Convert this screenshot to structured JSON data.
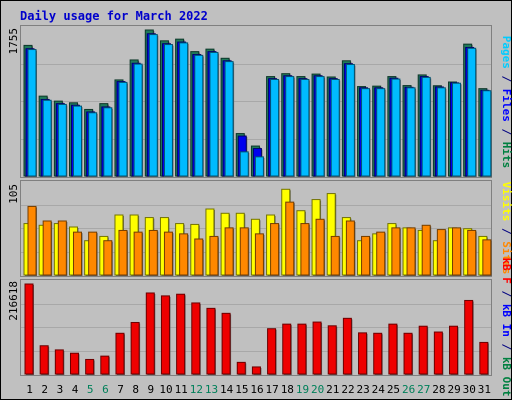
{
  "chart_data": {
    "type": "bar",
    "title": "Daily usage for March 2022",
    "categories": [
      "1",
      "2",
      "3",
      "4",
      "5",
      "6",
      "7",
      "8",
      "9",
      "10",
      "11",
      "12",
      "13",
      "14",
      "15",
      "16",
      "17",
      "18",
      "19",
      "20",
      "21",
      "22",
      "23",
      "24",
      "25",
      "26",
      "27",
      "28",
      "29",
      "30",
      "31"
    ],
    "weekend_days": [
      "5",
      "6",
      "12",
      "13",
      "19",
      "20",
      "26",
      "27"
    ],
    "panels": [
      {
        "id": "top",
        "ymax": 1755,
        "ymax_label": "1755",
        "right_labels": [
          {
            "text": "Pages",
            "color": "#00ccff"
          },
          {
            "text": " / ",
            "color": "#000080"
          },
          {
            "text": "Files",
            "color": "#0000ff"
          },
          {
            "text": " / ",
            "color": "#000080"
          },
          {
            "text": "Hits",
            "color": "#008040"
          }
        ],
        "series": [
          {
            "name": "Hits",
            "color": "#1f7a5a",
            "values": [
              1570,
              960,
              900,
              880,
              800,
              870,
              1155,
              1395,
              1755,
              1625,
              1645,
              1495,
              1525,
              1415,
              510,
              360,
              1195,
              1230,
              1195,
              1225,
              1190,
              1385,
              1075,
              1080,
              1195,
              1087,
              1215,
              1085,
              1130,
              1585,
              1050
            ]
          },
          {
            "name": "Files",
            "color": "#0000ee",
            "values": [
              1530,
              920,
              870,
              850,
              770,
              830,
              1135,
              1355,
              1710,
              1590,
              1610,
              1460,
              1495,
              1385,
              480,
              330,
              1170,
              1205,
              1170,
              1205,
              1170,
              1350,
              1060,
              1060,
              1175,
              1066,
              1195,
              1070,
              1120,
              1545,
              1030
            ]
          },
          {
            "name": "Pages",
            "color": "#00bbff",
            "values": [
              1520,
              910,
              860,
              840,
              760,
              820,
              1125,
              1345,
              1700,
              1580,
              1600,
              1450,
              1485,
              1375,
              290,
              230,
              1160,
              1195,
              1160,
              1195,
              1160,
              1340,
              1050,
              1050,
              1165,
              1060,
              1185,
              1060,
              1115,
              1535,
              1025
            ]
          }
        ]
      },
      {
        "id": "middle",
        "ymax": 105,
        "ymax_label": "105",
        "right_labels": [
          {
            "text": "Visits",
            "color": "#ffff00"
          },
          {
            "text": " / ",
            "color": "#000080"
          },
          {
            "text": "Sites",
            "color": "#ff8800"
          }
        ],
        "series": [
          {
            "name": "Visits",
            "color": "#ffff00",
            "values": [
              60,
              58,
              60,
              56,
              40,
              45,
              70,
              70,
              67,
              67,
              60,
              59,
              77,
              72,
              72,
              65,
              70,
              100,
              75,
              88,
              95,
              67,
              40,
              48,
              60,
              55,
              52,
              40,
              55,
              54,
              45
            ]
          },
          {
            "name": "Sites",
            "color": "#ff8800",
            "values": [
              80,
              63,
              63,
              50,
              50,
              40,
              52,
              50,
              52,
              50,
              48,
              42,
              45,
              55,
              55,
              48,
              60,
              85,
              60,
              65,
              45,
              63,
              45,
              50,
              55,
              55,
              58,
              53,
              55,
              52,
              41
            ]
          }
        ]
      },
      {
        "id": "bottom",
        "ymax": 216618,
        "ymax_label": "216618",
        "right_labels": [
          {
            "text": "kB F",
            "color": "#ff0000"
          },
          {
            "text": " / ",
            "color": "#000080"
          },
          {
            "text": "kB In",
            "color": "#0000ff"
          },
          {
            "text": " / ",
            "color": "#000080"
          },
          {
            "text": "kB Out",
            "color": "#008040"
          }
        ],
        "series": [
          {
            "name": "kB F",
            "color": "#ee0000",
            "values": [
              216618,
              68000,
              58000,
              50000,
              35000,
              43000,
              98000,
              124000,
              195000,
              188000,
              192000,
              171000,
              158000,
              146000,
              28000,
              17000,
              109000,
              120000,
              120000,
              125000,
              116000,
              134000,
              99000,
              98000,
              120000,
              98000,
              115000,
              101000,
              115000,
              177000,
              76000
            ]
          }
        ]
      }
    ]
  }
}
